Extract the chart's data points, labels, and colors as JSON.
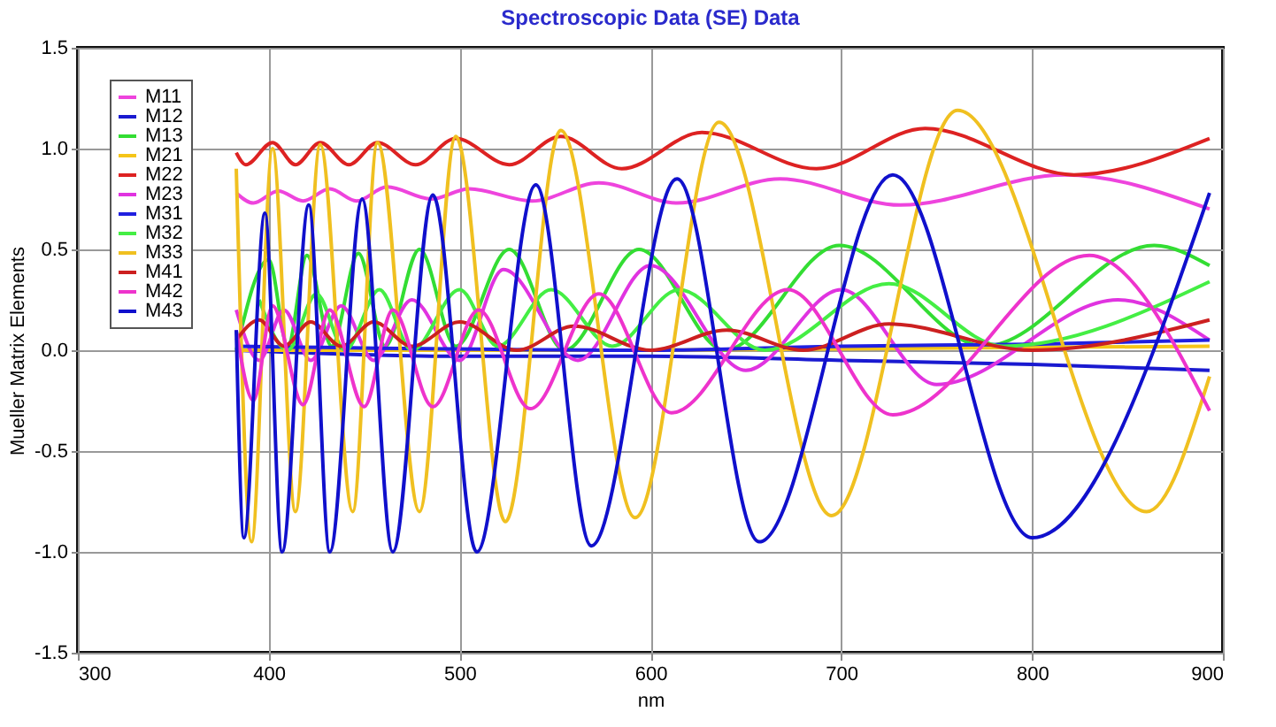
{
  "chart_data": {
    "type": "line",
    "title": "Spectroscopic Data (SE) Data",
    "xlabel": "nm",
    "ylabel": "Mueller Matrix Elements",
    "xlim": [
      300,
      900
    ],
    "xticks": [
      300,
      400,
      500,
      600,
      700,
      800,
      900
    ],
    "ylim": [
      -1.5,
      1.5
    ],
    "yticks": [
      {
        "value": -1.5,
        "label": "-1.5"
      },
      {
        "value": -1,
        "label": "-1.0"
      },
      {
        "value": -0.5,
        "label": "-0.5"
      },
      {
        "value": 0,
        "label": "0.0"
      },
      {
        "value": 0.5,
        "label": "0.5"
      },
      {
        "value": 1,
        "label": "1.0"
      },
      {
        "value": 1.5,
        "label": "1.5"
      }
    ],
    "grid": true,
    "legend": "top left",
    "marker": "none",
    "line_style": "solid",
    "series": [
      {
        "name": "M11",
        "color": "#ee44dd",
        "x": [
          383,
          392,
          405,
          418,
          432,
          446,
          462,
          485,
          505,
          538,
          573,
          614,
          668,
          731,
          817,
          893
        ],
        "values": [
          0.78,
          0.73,
          0.79,
          0.74,
          0.8,
          0.74,
          0.81,
          0.75,
          0.8,
          0.74,
          0.83,
          0.73,
          0.85,
          0.72,
          0.87,
          0.7
        ]
      },
      {
        "name": "M12",
        "color": "#1a1ad0",
        "x": [
          383,
          500,
          600,
          700,
          800,
          893
        ],
        "values": [
          0.0,
          -0.03,
          -0.03,
          -0.05,
          -0.07,
          -0.1
        ]
      },
      {
        "name": "M13",
        "color": "#33dd33",
        "x": [
          383,
          400,
          410,
          420,
          433,
          447,
          461,
          479,
          498,
          526,
          555,
          594,
          639,
          699,
          775,
          864,
          893
        ],
        "values": [
          0.0,
          0.45,
          0.02,
          0.47,
          0.02,
          0.48,
          0.02,
          0.5,
          0.02,
          0.5,
          0.0,
          0.5,
          0.0,
          0.52,
          0.02,
          0.52,
          0.42
        ]
      },
      {
        "name": "M21",
        "color": "#f5c518",
        "x": [
          383,
          600,
          893
        ],
        "values": [
          0.0,
          0.0,
          0.02
        ]
      },
      {
        "name": "M22",
        "color": "#dd2222",
        "x": [
          383,
          388,
          402,
          414,
          427,
          442,
          457,
          477,
          498,
          526,
          553,
          585,
          627,
          687,
          744,
          822,
          893
        ],
        "values": [
          0.98,
          0.92,
          1.03,
          0.92,
          1.03,
          0.92,
          1.03,
          0.92,
          1.05,
          0.92,
          1.06,
          0.9,
          1.08,
          0.9,
          1.1,
          0.87,
          1.05
        ]
      },
      {
        "name": "M23",
        "color": "#e033e0",
        "x": [
          383,
          395,
          408,
          422,
          438,
          455,
          475,
          500,
          523,
          562,
          600,
          650,
          700,
          750,
          845,
          893
        ],
        "values": [
          0.2,
          -0.05,
          0.2,
          -0.05,
          0.22,
          -0.05,
          0.25,
          -0.05,
          0.4,
          -0.05,
          0.42,
          -0.1,
          0.3,
          -0.17,
          0.25,
          0.05
        ]
      },
      {
        "name": "M31",
        "color": "#2020e0",
        "x": [
          383,
          600,
          700,
          800,
          893
        ],
        "values": [
          0.02,
          0.0,
          0.02,
          0.03,
          0.05
        ]
      },
      {
        "name": "M32",
        "color": "#44ee44",
        "x": [
          395,
          410,
          425,
          440,
          458,
          475,
          500,
          520,
          548,
          580,
          615,
          660,
          725,
          785,
          893
        ],
        "values": [
          0.25,
          0.0,
          0.28,
          0.0,
          0.3,
          0.0,
          0.3,
          0.02,
          0.3,
          0.02,
          0.3,
          0.0,
          0.33,
          0.02,
          0.34
        ]
      },
      {
        "name": "M33",
        "color": "#f0c020",
        "x": [
          383,
          391,
          402,
          414,
          427,
          444,
          457,
          479,
          498,
          524,
          553,
          592,
          636,
          695,
          761,
          860,
          893
        ],
        "values": [
          0.9,
          -0.95,
          1.0,
          -0.8,
          1.02,
          -0.8,
          1.03,
          -0.8,
          1.06,
          -0.85,
          1.09,
          -0.83,
          1.13,
          -0.82,
          1.19,
          -0.8,
          -0.13
        ]
      },
      {
        "name": "M41",
        "color": "#cc2020",
        "x": [
          383,
          395,
          408,
          422,
          438,
          455,
          475,
          500,
          530,
          560,
          600,
          640,
          680,
          725,
          800,
          893
        ],
        "values": [
          0.05,
          0.15,
          0.02,
          0.14,
          0.02,
          0.14,
          0.02,
          0.14,
          0.0,
          0.12,
          0.0,
          0.1,
          0.0,
          0.13,
          0.0,
          0.15
        ]
      },
      {
        "name": "M42",
        "color": "#ee33cc",
        "x": [
          383,
          392,
          402,
          418,
          432,
          450,
          465,
          486,
          510,
          537,
          573,
          611,
          672,
          727,
          830,
          893
        ],
        "values": [
          0.1,
          -0.25,
          0.22,
          -0.27,
          0.2,
          -0.28,
          0.2,
          -0.28,
          0.2,
          -0.29,
          0.28,
          -0.31,
          0.3,
          -0.32,
          0.47,
          -0.3
        ]
      },
      {
        "name": "M43",
        "color": "#1010cc",
        "x": [
          383,
          387,
          398,
          407,
          421,
          432,
          449,
          465,
          486,
          509,
          540,
          569,
          614,
          657,
          727,
          800,
          893
        ],
        "values": [
          0.1,
          -0.93,
          0.68,
          -1.0,
          0.72,
          -1.0,
          0.75,
          -1.0,
          0.77,
          -1.0,
          0.82,
          -0.97,
          0.85,
          -0.95,
          0.87,
          -0.93,
          0.78
        ]
      }
    ]
  }
}
